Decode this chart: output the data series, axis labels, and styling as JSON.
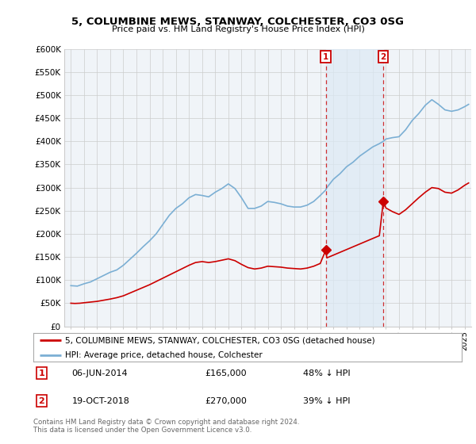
{
  "title": "5, COLUMBINE MEWS, STANWAY, COLCHESTER, CO3 0SG",
  "subtitle": "Price paid vs. HM Land Registry's House Price Index (HPI)",
  "background_color": "#ffffff",
  "plot_background": "#f0f4f8",
  "grid_color": "#cccccc",
  "hpi_color": "#7bafd4",
  "price_color": "#cc0000",
  "fill_color": "#ddeaf5",
  "ylim": [
    0,
    600000
  ],
  "yticks": [
    0,
    50000,
    100000,
    150000,
    200000,
    250000,
    300000,
    350000,
    400000,
    450000,
    500000,
    550000,
    600000
  ],
  "ytick_labels": [
    "£0",
    "£50K",
    "£100K",
    "£150K",
    "£200K",
    "£250K",
    "£300K",
    "£350K",
    "£400K",
    "£450K",
    "£500K",
    "£550K",
    "£600K"
  ],
  "xlim_left": 1994.5,
  "xlim_right": 2025.5,
  "sale1_x": 2014.42,
  "sale1_y": 165000,
  "sale2_x": 2018.8,
  "sale2_y": 270000,
  "sale1_date": "06-JUN-2014",
  "sale1_price": "£165,000",
  "sale1_note": "48% ↓ HPI",
  "sale2_date": "19-OCT-2018",
  "sale2_price": "£270,000",
  "sale2_note": "39% ↓ HPI",
  "legend_label1": "5, COLUMBINE MEWS, STANWAY, COLCHESTER, CO3 0SG (detached house)",
  "legend_label2": "HPI: Average price, detached house, Colchester",
  "footnote": "Contains HM Land Registry data © Crown copyright and database right 2024.\nThis data is licensed under the Open Government Licence v3.0."
}
